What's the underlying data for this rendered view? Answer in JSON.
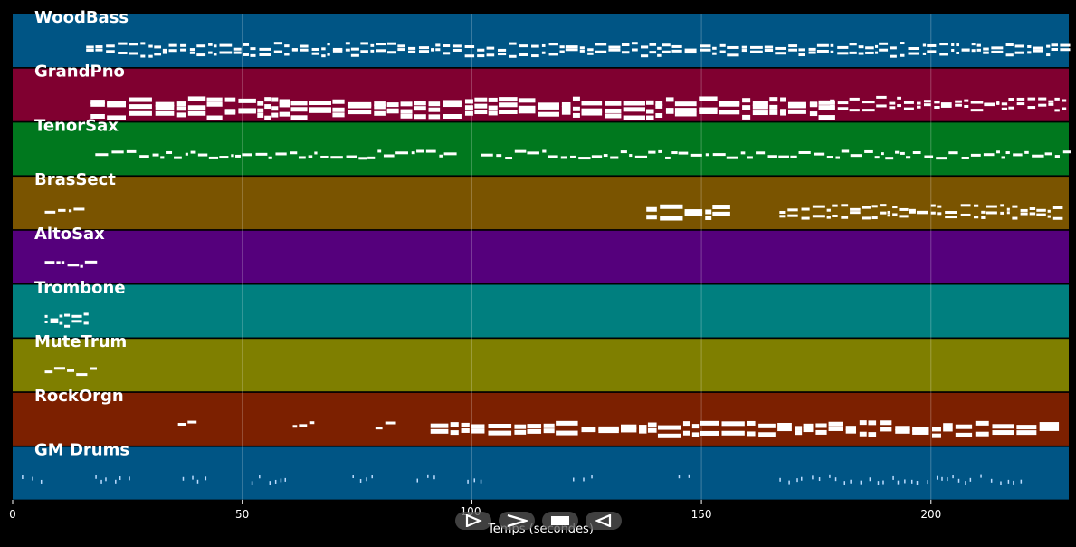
{
  "tracks": [
    {
      "name": "WoodBass",
      "color": "#005585"
    },
    {
      "name": "GrandPno",
      "color": "#800030"
    },
    {
      "name": "TenorSax",
      "color": "#00781e"
    },
    {
      "name": "BrasSect",
      "color": "#7a5400"
    },
    {
      "name": "AltoSax",
      "color": "#55007c"
    },
    {
      "name": "Trombone",
      "color": "#007f7f"
    },
    {
      "name": "MuteTrum",
      "color": "#7f7f00"
    },
    {
      "name": "RockOrgn",
      "color": "#7c2000"
    },
    {
      "name": "GM Drums",
      "color": "#005585"
    }
  ],
  "x_axis": {
    "label": "Temps (secondes)",
    "ticks": [
      0,
      50,
      100,
      150,
      200
    ],
    "range": [
      0,
      230
    ],
    "grid": true
  },
  "controls": [
    {
      "name": "play",
      "icon": "play-icon"
    },
    {
      "name": "forward",
      "icon": "fast-forward-icon"
    },
    {
      "name": "stop",
      "icon": "stop-icon"
    },
    {
      "name": "back",
      "icon": "rewind-icon"
    }
  ]
}
